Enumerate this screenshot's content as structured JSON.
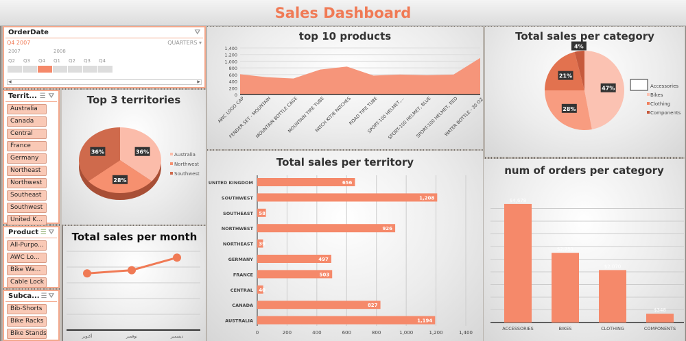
{
  "header": {
    "title": "Sales Dashboard"
  },
  "order_date_slicer": {
    "title": "OrderDate",
    "selection": "Q4 2007",
    "level": "QUARTERS",
    "years": [
      "2007",
      "2008"
    ],
    "quarters": [
      "Q2",
      "Q3",
      "Q4",
      "Q1",
      "Q2",
      "Q3",
      "Q4"
    ],
    "selected_index": 2
  },
  "territory_slicer": {
    "title": "Territ...",
    "items": [
      "Australia",
      "Canada",
      "Central",
      "France",
      "Germany",
      "Northeast",
      "Northwest",
      "Southeast",
      "Southwest",
      "United K..."
    ]
  },
  "product_slicer": {
    "title": "Product",
    "items": [
      "All-Purpo...",
      "AWC Lo...",
      "Bike Wa...",
      "Cable Lock"
    ]
  },
  "subcategory_slicer": {
    "title": "Subca...",
    "items": [
      "Bib-Shorts",
      "Bike Racks",
      "Bike Stands"
    ]
  },
  "colors": {
    "accent": "#f07a55",
    "bar": "#f5896a",
    "light": "#fbbcaa",
    "mid": "#f6906f",
    "dark": "#cf6a4c",
    "darkest": "#b85a40"
  },
  "chart_data": [
    {
      "id": "top3",
      "type": "pie",
      "title": "Top 3 territories",
      "categories": [
        "Australia",
        "Northwest",
        "Southwest"
      ],
      "values": [
        36,
        28,
        36
      ],
      "labels": [
        "36%",
        "28%",
        "36%"
      ],
      "legend": "right"
    },
    {
      "id": "month",
      "type": "line",
      "title": "Total sales per month",
      "categories": [
        "أكتوبر",
        "نوفمبر",
        "ديسمبر"
      ],
      "values": [
        3.6,
        3.8,
        4.6
      ],
      "grid": true
    },
    {
      "id": "top10",
      "type": "area",
      "title": "top 10 products",
      "categories": [
        "AWC LOGO CAP",
        "FENDER SET - MOUNTAIN",
        "MOUNTAIN BOTTLE CAGE",
        "MOUNTAIN TIRE TUBE",
        "PATCH KIT/8 PATCHES",
        "ROAD TIRE TUBE",
        "SPORT-100 HELMET,...",
        "SPORT-100 HELMET, BLUE",
        "SPORT-100 HELMET, RED",
        "WATER BOTTLE - 30 OZ."
      ],
      "values": [
        610,
        520,
        480,
        750,
        840,
        570,
        600,
        580,
        600,
        1100
      ],
      "ylim": [
        0,
        1400
      ],
      "yticks": [
        "0",
        "200",
        "400",
        "600",
        "800",
        "1,000",
        "1,200",
        "1,400"
      ],
      "grid": true
    },
    {
      "id": "territory",
      "type": "bar",
      "orientation": "horizontal",
      "title": "Total sales per territory",
      "categories": [
        "UNITED KINGDOM",
        "SOUTHWEST",
        "SOUTHEAST",
        "NORTHWEST",
        "NORTHEAST",
        "GERMANY",
        "FRANCE",
        "CENTRAL",
        "CANADA",
        "AUSTRALIA"
      ],
      "values": [
        656,
        1208,
        58,
        926,
        39,
        497,
        503,
        40,
        827,
        1194
      ],
      "labels": [
        "656",
        "1,208",
        "58",
        "926",
        "39",
        "497",
        "503",
        "40",
        "827",
        "1,194"
      ],
      "xlim": [
        0,
        1400
      ],
      "xticks": [
        "0",
        "200",
        "400",
        "600",
        "800",
        "1,000",
        "1,200",
        "1,400"
      ],
      "grid": true
    },
    {
      "id": "category",
      "type": "pie",
      "title": "Total sales per category",
      "categories": [
        "Accessories",
        "Bikes",
        "Clothing",
        "Components"
      ],
      "values": [
        47,
        28,
        21,
        4
      ],
      "labels": [
        "47%",
        "28%",
        "21%",
        "4%"
      ],
      "legend": "right"
    },
    {
      "id": "orders",
      "type": "bar",
      "title": "num of orders per category",
      "categories": [
        "ACCESSORIES",
        "BIKES",
        "CLOTHING",
        "COMPONENTS"
      ],
      "values": [
        4678,
        2751,
        2070,
        348
      ],
      "labels": [
        "$4,678",
        "$2,751",
        "$2,070",
        "$348"
      ],
      "grid": true
    }
  ]
}
